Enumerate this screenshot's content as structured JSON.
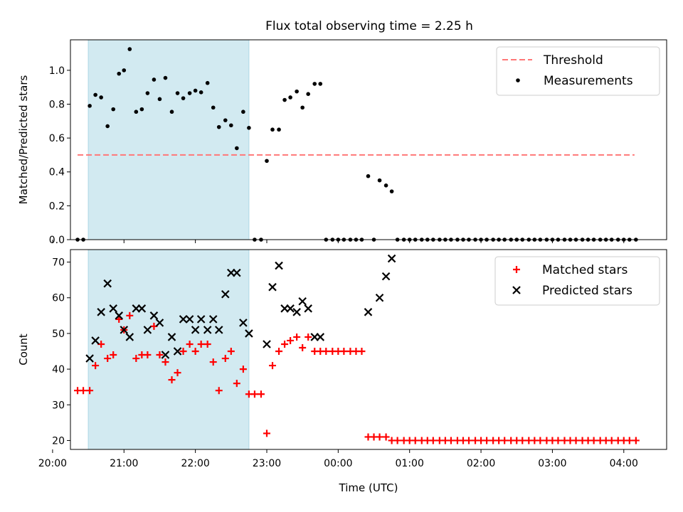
{
  "figure": {
    "title": "Flux total observing time = 2.25 h"
  },
  "chart_data": [
    {
      "type": "scatter",
      "panel": "top",
      "xlabel": "",
      "ylabel": "Matched/Predicted stars",
      "xlim": [
        20.25,
        28.6
      ],
      "ylim": [
        0,
        1.18
      ],
      "yticks": [
        0.0,
        0.2,
        0.4,
        0.6,
        0.8,
        1.0
      ],
      "ytick_labels": [
        "0.0",
        "0.2",
        "0.4",
        "0.6",
        "0.8",
        "1.0"
      ],
      "shaded_span": [
        20.5,
        22.75
      ],
      "shaded_color": "#add8e6",
      "legend_position": "upper-right",
      "series": [
        {
          "name": "Threshold",
          "kind": "line",
          "style": "dashed",
          "color": "#ff7777",
          "x": [
            20.35,
            28.15
          ],
          "y": [
            0.5,
            0.5
          ]
        },
        {
          "name": "Measurements",
          "kind": "scatter",
          "marker": "dot",
          "color": "#000000",
          "points": [
            [
              20.35,
              0.0
            ],
            [
              20.43,
              0.0
            ],
            [
              20.52,
              0.79
            ],
            [
              20.6,
              0.855
            ],
            [
              20.68,
              0.84
            ],
            [
              20.77,
              0.67
            ],
            [
              20.85,
              0.77
            ],
            [
              20.93,
              0.98
            ],
            [
              21.0,
              1.0
            ],
            [
              21.08,
              1.125
            ],
            [
              21.17,
              0.755
            ],
            [
              21.25,
              0.77
            ],
            [
              21.33,
              0.865
            ],
            [
              21.42,
              0.945
            ],
            [
              21.5,
              0.83
            ],
            [
              21.58,
              0.955
            ],
            [
              21.67,
              0.755
            ],
            [
              21.75,
              0.865
            ],
            [
              21.83,
              0.835
            ],
            [
              21.92,
              0.865
            ],
            [
              22.0,
              0.88
            ],
            [
              22.08,
              0.87
            ],
            [
              22.17,
              0.925
            ],
            [
              22.25,
              0.78
            ],
            [
              22.33,
              0.665
            ],
            [
              22.42,
              0.705
            ],
            [
              22.5,
              0.675
            ],
            [
              22.58,
              0.54
            ],
            [
              22.67,
              0.755
            ],
            [
              22.75,
              0.66
            ],
            [
              22.83,
              0.0
            ],
            [
              22.92,
              0.0
            ],
            [
              23.0,
              0.465
            ],
            [
              23.08,
              0.65
            ],
            [
              23.17,
              0.65
            ],
            [
              23.25,
              0.825
            ],
            [
              23.33,
              0.84
            ],
            [
              23.42,
              0.875
            ],
            [
              23.5,
              0.78
            ],
            [
              23.58,
              0.86
            ],
            [
              23.67,
              0.92
            ],
            [
              23.75,
              0.92
            ],
            [
              23.83,
              0.0
            ],
            [
              23.92,
              0.0
            ],
            [
              24.0,
              0.0
            ],
            [
              24.08,
              0.0
            ],
            [
              24.17,
              0.0
            ],
            [
              24.25,
              0.0
            ],
            [
              24.33,
              0.0
            ],
            [
              24.42,
              0.375
            ],
            [
              24.5,
              0.0
            ],
            [
              24.58,
              0.35
            ],
            [
              24.67,
              0.32
            ],
            [
              24.75,
              0.285
            ],
            [
              24.83,
              0.0
            ],
            [
              24.92,
              0.0
            ],
            [
              25.0,
              0.0
            ],
            [
              25.08,
              0.0
            ],
            [
              25.17,
              0.0
            ],
            [
              25.25,
              0.0
            ],
            [
              25.33,
              0.0
            ],
            [
              25.42,
              0.0
            ],
            [
              25.5,
              0.0
            ],
            [
              25.58,
              0.0
            ],
            [
              25.67,
              0.0
            ],
            [
              25.75,
              0.0
            ],
            [
              25.83,
              0.0
            ],
            [
              25.92,
              0.0
            ],
            [
              26.0,
              0.0
            ],
            [
              26.08,
              0.0
            ],
            [
              26.17,
              0.0
            ],
            [
              26.25,
              0.0
            ],
            [
              26.33,
              0.0
            ],
            [
              26.42,
              0.0
            ],
            [
              26.5,
              0.0
            ],
            [
              26.58,
              0.0
            ],
            [
              26.67,
              0.0
            ],
            [
              26.75,
              0.0
            ],
            [
              26.83,
              0.0
            ],
            [
              26.92,
              0.0
            ],
            [
              27.0,
              0.0
            ],
            [
              27.08,
              0.0
            ],
            [
              27.17,
              0.0
            ],
            [
              27.25,
              0.0
            ],
            [
              27.33,
              0.0
            ],
            [
              27.42,
              0.0
            ],
            [
              27.5,
              0.0
            ],
            [
              27.58,
              0.0
            ],
            [
              27.67,
              0.0
            ],
            [
              27.75,
              0.0
            ],
            [
              27.83,
              0.0
            ],
            [
              27.92,
              0.0
            ],
            [
              28.0,
              0.0
            ],
            [
              28.08,
              0.0
            ],
            [
              28.17,
              0.0
            ]
          ]
        }
      ]
    },
    {
      "type": "scatter",
      "panel": "bottom",
      "xlabel": "Time (UTC)",
      "ylabel": "Count",
      "xlim": [
        20.25,
        28.6
      ],
      "ylim": [
        17.5,
        73.5
      ],
      "xticks": [
        20,
        21,
        22,
        23,
        24,
        25,
        26,
        27,
        28
      ],
      "xtick_labels": [
        "20:00",
        "21:00",
        "22:00",
        "23:00",
        "00:00",
        "01:00",
        "02:00",
        "03:00",
        "04:00"
      ],
      "yticks": [
        20,
        30,
        40,
        50,
        60,
        70
      ],
      "ytick_labels": [
        "20",
        "30",
        "40",
        "50",
        "60",
        "70"
      ],
      "shaded_span": [
        20.5,
        22.75
      ],
      "shaded_color": "#add8e6",
      "legend_position": "upper-right",
      "series": [
        {
          "name": "Matched stars",
          "kind": "scatter",
          "marker": "plus",
          "color": "#ff0000",
          "points": [
            [
              20.35,
              34
            ],
            [
              20.43,
              34
            ],
            [
              20.52,
              34
            ],
            [
              20.6,
              41
            ],
            [
              20.68,
              47
            ],
            [
              20.77,
              43
            ],
            [
              20.85,
              44
            ],
            [
              20.93,
              54
            ],
            [
              21.0,
              51
            ],
            [
              21.08,
              55
            ],
            [
              21.17,
              43
            ],
            [
              21.25,
              44
            ],
            [
              21.33,
              44
            ],
            [
              21.42,
              52
            ],
            [
              21.5,
              44
            ],
            [
              21.58,
              42
            ],
            [
              21.67,
              37
            ],
            [
              21.75,
              39
            ],
            [
              21.83,
              45
            ],
            [
              21.92,
              47
            ],
            [
              22.0,
              45
            ],
            [
              22.08,
              47
            ],
            [
              22.17,
              47
            ],
            [
              22.25,
              42
            ],
            [
              22.33,
              34
            ],
            [
              22.42,
              43
            ],
            [
              22.5,
              45
            ],
            [
              22.58,
              36
            ],
            [
              22.67,
              40
            ],
            [
              22.75,
              33
            ],
            [
              22.83,
              33
            ],
            [
              22.92,
              33
            ],
            [
              23.0,
              22
            ],
            [
              23.08,
              41
            ],
            [
              23.17,
              45
            ],
            [
              23.25,
              47
            ],
            [
              23.33,
              48
            ],
            [
              23.42,
              49
            ],
            [
              23.5,
              46
            ],
            [
              23.58,
              49
            ],
            [
              23.67,
              45
            ],
            [
              23.75,
              45
            ],
            [
              23.83,
              45
            ],
            [
              23.92,
              45
            ],
            [
              24.0,
              45
            ],
            [
              24.08,
              45
            ],
            [
              24.17,
              45
            ],
            [
              24.25,
              45
            ],
            [
              24.33,
              45
            ],
            [
              24.42,
              21
            ],
            [
              24.5,
              21
            ],
            [
              24.58,
              21
            ],
            [
              24.67,
              21
            ],
            [
              24.75,
              20
            ],
            [
              24.83,
              20
            ],
            [
              24.92,
              20
            ],
            [
              25.0,
              20
            ],
            [
              25.08,
              20
            ],
            [
              25.17,
              20
            ],
            [
              25.25,
              20
            ],
            [
              25.33,
              20
            ],
            [
              25.42,
              20
            ],
            [
              25.5,
              20
            ],
            [
              25.58,
              20
            ],
            [
              25.67,
              20
            ],
            [
              25.75,
              20
            ],
            [
              25.83,
              20
            ],
            [
              25.92,
              20
            ],
            [
              26.0,
              20
            ],
            [
              26.08,
              20
            ],
            [
              26.17,
              20
            ],
            [
              26.25,
              20
            ],
            [
              26.33,
              20
            ],
            [
              26.42,
              20
            ],
            [
              26.5,
              20
            ],
            [
              26.58,
              20
            ],
            [
              26.67,
              20
            ],
            [
              26.75,
              20
            ],
            [
              26.83,
              20
            ],
            [
              26.92,
              20
            ],
            [
              27.0,
              20
            ],
            [
              27.08,
              20
            ],
            [
              27.17,
              20
            ],
            [
              27.25,
              20
            ],
            [
              27.33,
              20
            ],
            [
              27.42,
              20
            ],
            [
              27.5,
              20
            ],
            [
              27.58,
              20
            ],
            [
              27.67,
              20
            ],
            [
              27.75,
              20
            ],
            [
              27.83,
              20
            ],
            [
              27.92,
              20
            ],
            [
              28.0,
              20
            ],
            [
              28.08,
              20
            ],
            [
              28.17,
              20
            ]
          ]
        },
        {
          "name": "Predicted stars",
          "kind": "scatter",
          "marker": "x",
          "color": "#000000",
          "points": [
            [
              20.52,
              43
            ],
            [
              20.6,
              48
            ],
            [
              20.68,
              56
            ],
            [
              20.77,
              64
            ],
            [
              20.85,
              57
            ],
            [
              20.93,
              55
            ],
            [
              21.0,
              51
            ],
            [
              21.08,
              49
            ],
            [
              21.17,
              57
            ],
            [
              21.25,
              57
            ],
            [
              21.33,
              51
            ],
            [
              21.42,
              55
            ],
            [
              21.5,
              53
            ],
            [
              21.58,
              44
            ],
            [
              21.67,
              49
            ],
            [
              21.75,
              45
            ],
            [
              21.83,
              54
            ],
            [
              21.92,
              54
            ],
            [
              22.0,
              51
            ],
            [
              22.08,
              54
            ],
            [
              22.17,
              51
            ],
            [
              22.25,
              54
            ],
            [
              22.33,
              51
            ],
            [
              22.42,
              61
            ],
            [
              22.5,
              67
            ],
            [
              22.58,
              67
            ],
            [
              22.67,
              53
            ],
            [
              22.75,
              50
            ],
            [
              23.0,
              47
            ],
            [
              23.08,
              63
            ],
            [
              23.17,
              69
            ],
            [
              23.25,
              57
            ],
            [
              23.33,
              57
            ],
            [
              23.42,
              56
            ],
            [
              23.5,
              59
            ],
            [
              23.58,
              57
            ],
            [
              23.67,
              49
            ],
            [
              23.75,
              49
            ],
            [
              24.42,
              56
            ],
            [
              24.58,
              60
            ],
            [
              24.67,
              66
            ],
            [
              24.75,
              71
            ]
          ]
        }
      ]
    }
  ]
}
